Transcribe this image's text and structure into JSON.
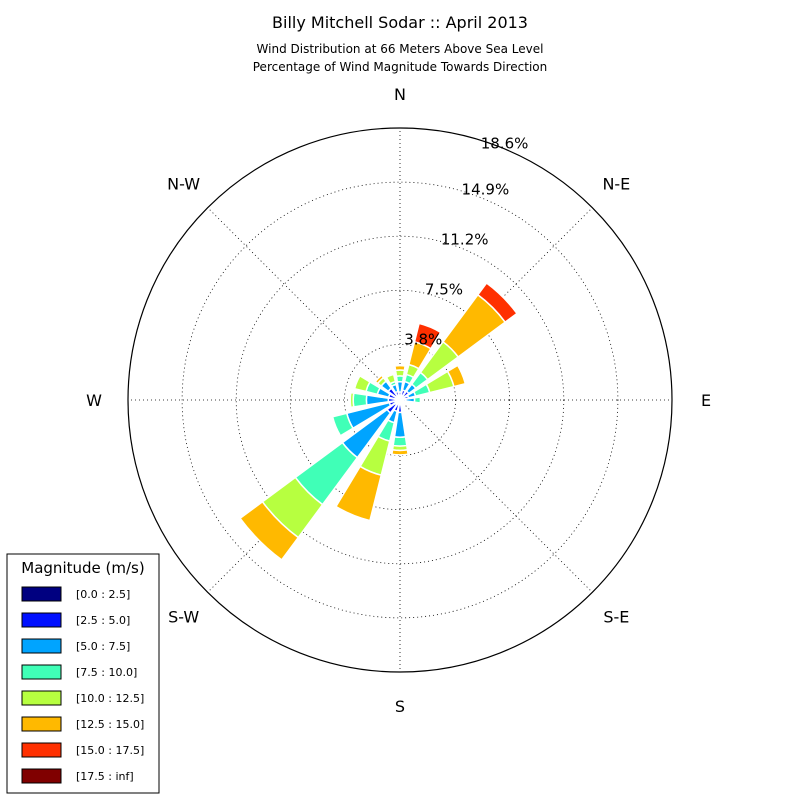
{
  "chart_data": {
    "type": "windrose",
    "title": "Billy Mitchell Sodar :: April 2013",
    "subtitle_lines": [
      "Wind Distribution at 66 Meters Above Sea Level",
      "Percentage of Wind Magnitude Towards Direction"
    ],
    "directions": [
      "N",
      "N-E",
      "E",
      "S-E",
      "S",
      "S-W",
      "W",
      "N-W"
    ],
    "radial_ticks": [
      "3.8%",
      "7.5%",
      "11.2%",
      "14.9%",
      "18.6%"
    ],
    "radial_tick_values": [
      3.8,
      7.5,
      11.2,
      14.9,
      18.6
    ],
    "rmax": 18.6,
    "sector_count": 16,
    "sector_bearings_deg": [
      0,
      22.5,
      45,
      67.5,
      90,
      112.5,
      135,
      157.5,
      180,
      202.5,
      225,
      247.5,
      270,
      292.5,
      315,
      337.5
    ],
    "legend": {
      "title": "Magnitude (m/s)",
      "bins": [
        "[0.0 : 2.5]",
        "[2.5 : 5.0]",
        "[5.0 : 7.5]",
        "[7.5 : 10.0]",
        "[10.0 : 12.5]",
        "[12.5 : 15.0]",
        "[15.0 : 17.5]",
        "[17.5 : inf]"
      ],
      "colors": [
        "#000080",
        "#0010ff",
        "#00a4ff",
        "#40ffb7",
        "#b7ff40",
        "#ffb900",
        "#ff3000",
        "#800000"
      ]
    },
    "series": [
      {
        "name": "[0.0 : 2.5]",
        "values": [
          0.15,
          0.3,
          0.25,
          0.2,
          0.1,
          0.05,
          0.1,
          0.05,
          0.15,
          0.3,
          0.4,
          0.35,
          0.3,
          0.3,
          0.3,
          0.2
        ]
      },
      {
        "name": "[2.5 : 5.0]",
        "values": [
          0.4,
          0.4,
          0.5,
          0.4,
          0.3,
          0.0,
          0.1,
          0.0,
          0.7,
          0.5,
          0.7,
          0.4,
          0.5,
          0.5,
          0.7,
          0.4
        ]
      },
      {
        "name": "[5.0 : 7.5]",
        "values": [
          0.7,
          0.6,
          0.6,
          0.5,
          0.6,
          0.0,
          0.1,
          0.0,
          1.7,
          0.8,
          3.8,
          3.0,
          1.5,
          0.8,
          0.6,
          0.5
        ]
      },
      {
        "name": "[7.5 : 10.0]",
        "values": [
          0.4,
          0.5,
          1.0,
          1.0,
          0.4,
          0.0,
          0.1,
          0.0,
          0.6,
          1.3,
          4.0,
          1.0,
          0.9,
          0.8,
          0.0,
          0.2
        ]
      },
      {
        "name": "[10.0 : 12.5]",
        "values": [
          0.4,
          0.7,
          2.6,
          1.7,
          0.0,
          0.0,
          0.1,
          0.0,
          0.3,
          2.4,
          2.8,
          0.0,
          0.2,
          0.8,
          0.3,
          0.5
        ]
      },
      {
        "name": "[12.5 : 15.0]",
        "values": [
          0.3,
          1.6,
          4.0,
          0.8,
          0.0,
          0.0,
          0.0,
          0.0,
          0.3,
          3.2,
          1.9,
          0.0,
          0.0,
          0.0,
          0.2,
          0.0
        ]
      },
      {
        "name": "[15.0 : 17.5]",
        "values": [
          0.0,
          1.3,
          1.0,
          0.0,
          0.0,
          0.0,
          0.0,
          0.0,
          0.0,
          0.0,
          0.0,
          0.0,
          0.0,
          0.0,
          0.0,
          0.0
        ]
      },
      {
        "name": "[17.5 : inf]",
        "values": [
          0.0,
          0.0,
          0.0,
          0.0,
          0.0,
          0.0,
          0.0,
          0.0,
          0.0,
          0.0,
          0.0,
          0.0,
          0.0,
          0.0,
          0.0,
          0.0
        ]
      }
    ]
  }
}
